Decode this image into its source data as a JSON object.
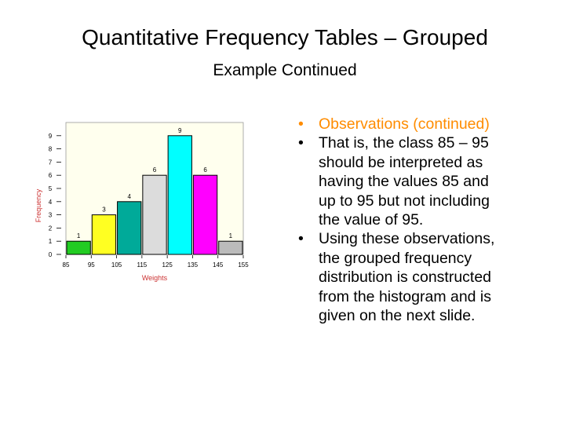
{
  "slide": {
    "title": "Quantitative Frequency Tables – Grouped",
    "subtitle": "Example Continued"
  },
  "bullets": [
    {
      "lines": [
        "Observations (continued)"
      ],
      "color": "#FF8C00"
    },
    {
      "lines": [
        "That is, the class 85 – 95",
        "should be interpreted as",
        "having the values 85 and",
        "up to 95 but not including",
        "the value of 95."
      ],
      "color": "#000000"
    },
    {
      "lines": [
        "Using these observations,",
        "the grouped frequency",
        "distribution is constructed",
        "from the histogram and is",
        "given on the next slide."
      ],
      "color": "#000000"
    }
  ],
  "chart_data": {
    "type": "bar",
    "xlabel": "Weights",
    "ylabel": "Frequency",
    "x_ticks": [
      "85",
      "95",
      "105",
      "115",
      "125",
      "135",
      "145",
      "155"
    ],
    "y_ticks": [
      "0",
      "1",
      "2",
      "3",
      "4",
      "5",
      "6",
      "7",
      "8",
      "9"
    ],
    "ylim": [
      0,
      10
    ],
    "plot_background": "#FFFFEE",
    "axis_label_color": "#CC3333",
    "bins": [
      {
        "from": 85,
        "to": 95,
        "value": 1,
        "label": "1",
        "color": "#22CC22"
      },
      {
        "from": 95,
        "to": 105,
        "value": 3,
        "label": "3",
        "color": "#FFFF22"
      },
      {
        "from": 105,
        "to": 115,
        "value": 4,
        "label": "4",
        "color": "#00AA99"
      },
      {
        "from": 115,
        "to": 125,
        "value": 6,
        "label": "6",
        "color": "#DCDCDC"
      },
      {
        "from": 125,
        "to": 135,
        "value": 9,
        "label": "9",
        "color": "#00FFFF"
      },
      {
        "from": 135,
        "to": 145,
        "value": 6,
        "label": "6",
        "color": "#FF00FF"
      },
      {
        "from": 145,
        "to": 155,
        "value": 1,
        "label": "1",
        "color": "#BBBBBB"
      }
    ]
  }
}
